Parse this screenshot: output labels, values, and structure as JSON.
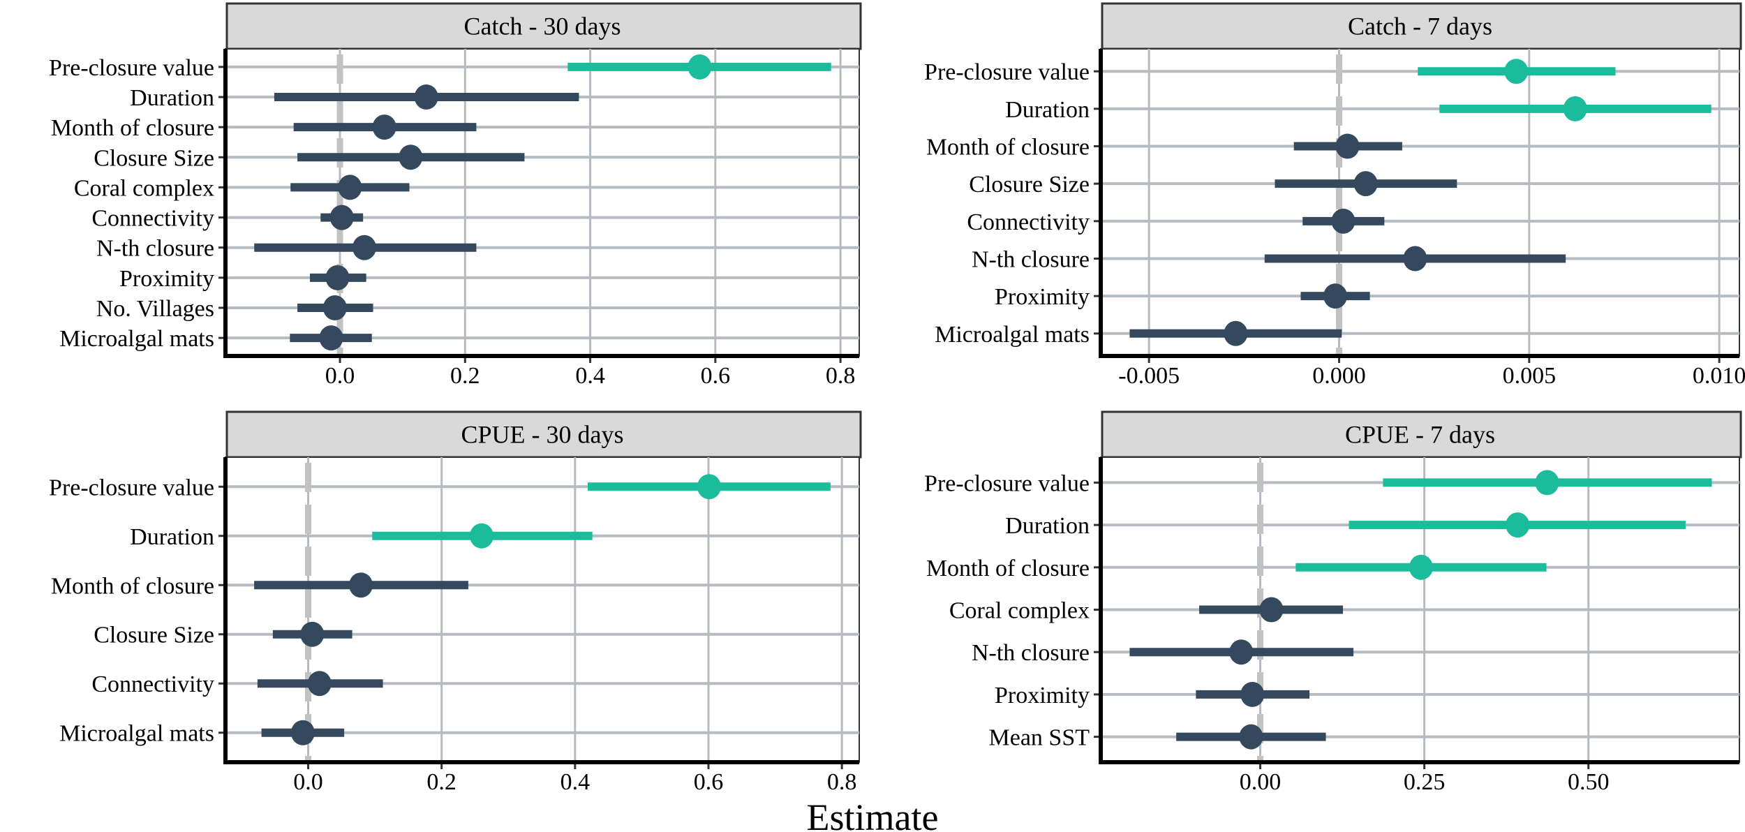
{
  "colors": {
    "significant": "#1abc9c",
    "nonsignificant": "#34495e",
    "grid": "#b5bbc1",
    "zero_line": "#c2c2c2",
    "strip_bg": "#d9d9d9"
  },
  "chart_data": [
    {
      "type": "forest",
      "title": "Catch - 30 days",
      "xlim": [
        -0.183,
        0.83
      ],
      "xticks": [
        0.0,
        0.2,
        0.4,
        0.6,
        0.8
      ],
      "xtick_labels": [
        "0.0",
        "0.2",
        "0.4",
        "0.6",
        "0.8"
      ],
      "rows": [
        {
          "label": "Pre-closure value",
          "estimate": 0.575,
          "lower": 0.364,
          "upper": 0.785,
          "significant": true
        },
        {
          "label": "Duration",
          "estimate": 0.138,
          "lower": -0.105,
          "upper": 0.382,
          "significant": false
        },
        {
          "label": "Month of closure",
          "estimate": 0.071,
          "lower": -0.074,
          "upper": 0.218,
          "significant": false
        },
        {
          "label": "Closure Size",
          "estimate": 0.113,
          "lower": -0.068,
          "upper": 0.295,
          "significant": false
        },
        {
          "label": "Coral complex",
          "estimate": 0.016,
          "lower": -0.079,
          "upper": 0.111,
          "significant": false
        },
        {
          "label": "Connectivity",
          "estimate": 0.003,
          "lower": -0.031,
          "upper": 0.037,
          "significant": false
        },
        {
          "label": "N-th closure",
          "estimate": 0.039,
          "lower": -0.137,
          "upper": 0.218,
          "significant": false
        },
        {
          "label": "Proximity",
          "estimate": -0.004,
          "lower": -0.048,
          "upper": 0.042,
          "significant": false
        },
        {
          "label": "No. Villages",
          "estimate": -0.008,
          "lower": -0.068,
          "upper": 0.053,
          "significant": false
        },
        {
          "label": "Microalgal mats",
          "estimate": -0.014,
          "lower": -0.08,
          "upper": 0.051,
          "significant": false
        }
      ]
    },
    {
      "type": "forest",
      "title": "Catch - 7 days",
      "xlim": [
        -0.00627,
        0.01053
      ],
      "xticks": [
        -0.005,
        0.0,
        0.005,
        0.01
      ],
      "xtick_labels": [
        "-0.005",
        "0.000",
        "0.005",
        "0.010"
      ],
      "rows": [
        {
          "label": "Pre-closure value",
          "estimate": 0.00466,
          "lower": 0.00207,
          "upper": 0.00727,
          "significant": true
        },
        {
          "label": "Duration",
          "estimate": 0.00621,
          "lower": 0.00264,
          "upper": 0.00979,
          "significant": true
        },
        {
          "label": "Month of closure",
          "estimate": 0.00022,
          "lower": -0.00119,
          "upper": 0.00166,
          "significant": false
        },
        {
          "label": "Closure Size",
          "estimate": 0.0007,
          "lower": -0.00169,
          "upper": 0.0031,
          "significant": false
        },
        {
          "label": "Connectivity",
          "estimate": 0.00011,
          "lower": -0.00096,
          "upper": 0.00119,
          "significant": false
        },
        {
          "label": "N-th closure",
          "estimate": 0.002,
          "lower": -0.00196,
          "upper": 0.00596,
          "significant": false
        },
        {
          "label": "Proximity",
          "estimate": -0.0001,
          "lower": -0.00101,
          "upper": 0.00081,
          "significant": false
        },
        {
          "label": "Microalgal mats",
          "estimate": -0.00272,
          "lower": -0.00551,
          "upper": 7e-05,
          "significant": false
        }
      ]
    },
    {
      "type": "forest",
      "title": "CPUE - 30 days",
      "xlim": [
        -0.124,
        0.826
      ],
      "xticks": [
        0.0,
        0.2,
        0.4,
        0.6,
        0.8
      ],
      "xtick_labels": [
        "0.0",
        "0.2",
        "0.4",
        "0.6",
        "0.8"
      ],
      "rows": [
        {
          "label": "Pre-closure value",
          "estimate": 0.601,
          "lower": 0.419,
          "upper": 0.783,
          "significant": true
        },
        {
          "label": "Duration",
          "estimate": 0.26,
          "lower": 0.096,
          "upper": 0.426,
          "significant": true
        },
        {
          "label": "Month of closure",
          "estimate": 0.079,
          "lower": -0.081,
          "upper": 0.24,
          "significant": false
        },
        {
          "label": "Closure Size",
          "estimate": 0.006,
          "lower": -0.053,
          "upper": 0.066,
          "significant": false
        },
        {
          "label": "Connectivity",
          "estimate": 0.017,
          "lower": -0.076,
          "upper": 0.112,
          "significant": false
        },
        {
          "label": "Microalgal mats",
          "estimate": -0.008,
          "lower": -0.07,
          "upper": 0.054,
          "significant": false
        }
      ]
    },
    {
      "type": "forest",
      "title": "CPUE - 7 days",
      "xlim": [
        -0.243,
        0.73
      ],
      "xticks": [
        0.0,
        0.25,
        0.5
      ],
      "xtick_labels": [
        "0.00",
        "0.25",
        "0.50"
      ],
      "rows": [
        {
          "label": "Pre-closure value",
          "estimate": 0.437,
          "lower": 0.187,
          "upper": 0.688,
          "significant": true
        },
        {
          "label": "Duration",
          "estimate": 0.392,
          "lower": 0.135,
          "upper": 0.648,
          "significant": true
        },
        {
          "label": "Month of closure",
          "estimate": 0.245,
          "lower": 0.054,
          "upper": 0.436,
          "significant": true
        },
        {
          "label": "Coral complex",
          "estimate": 0.017,
          "lower": -0.093,
          "upper": 0.126,
          "significant": false
        },
        {
          "label": "N-th closure",
          "estimate": -0.029,
          "lower": -0.199,
          "upper": 0.142,
          "significant": false
        },
        {
          "label": "Proximity",
          "estimate": -0.012,
          "lower": -0.098,
          "upper": 0.075,
          "significant": false
        },
        {
          "label": "Mean SST",
          "estimate": -0.014,
          "lower": -0.128,
          "upper": 0.1,
          "significant": false
        }
      ]
    }
  ],
  "xlabel": "Estimate"
}
